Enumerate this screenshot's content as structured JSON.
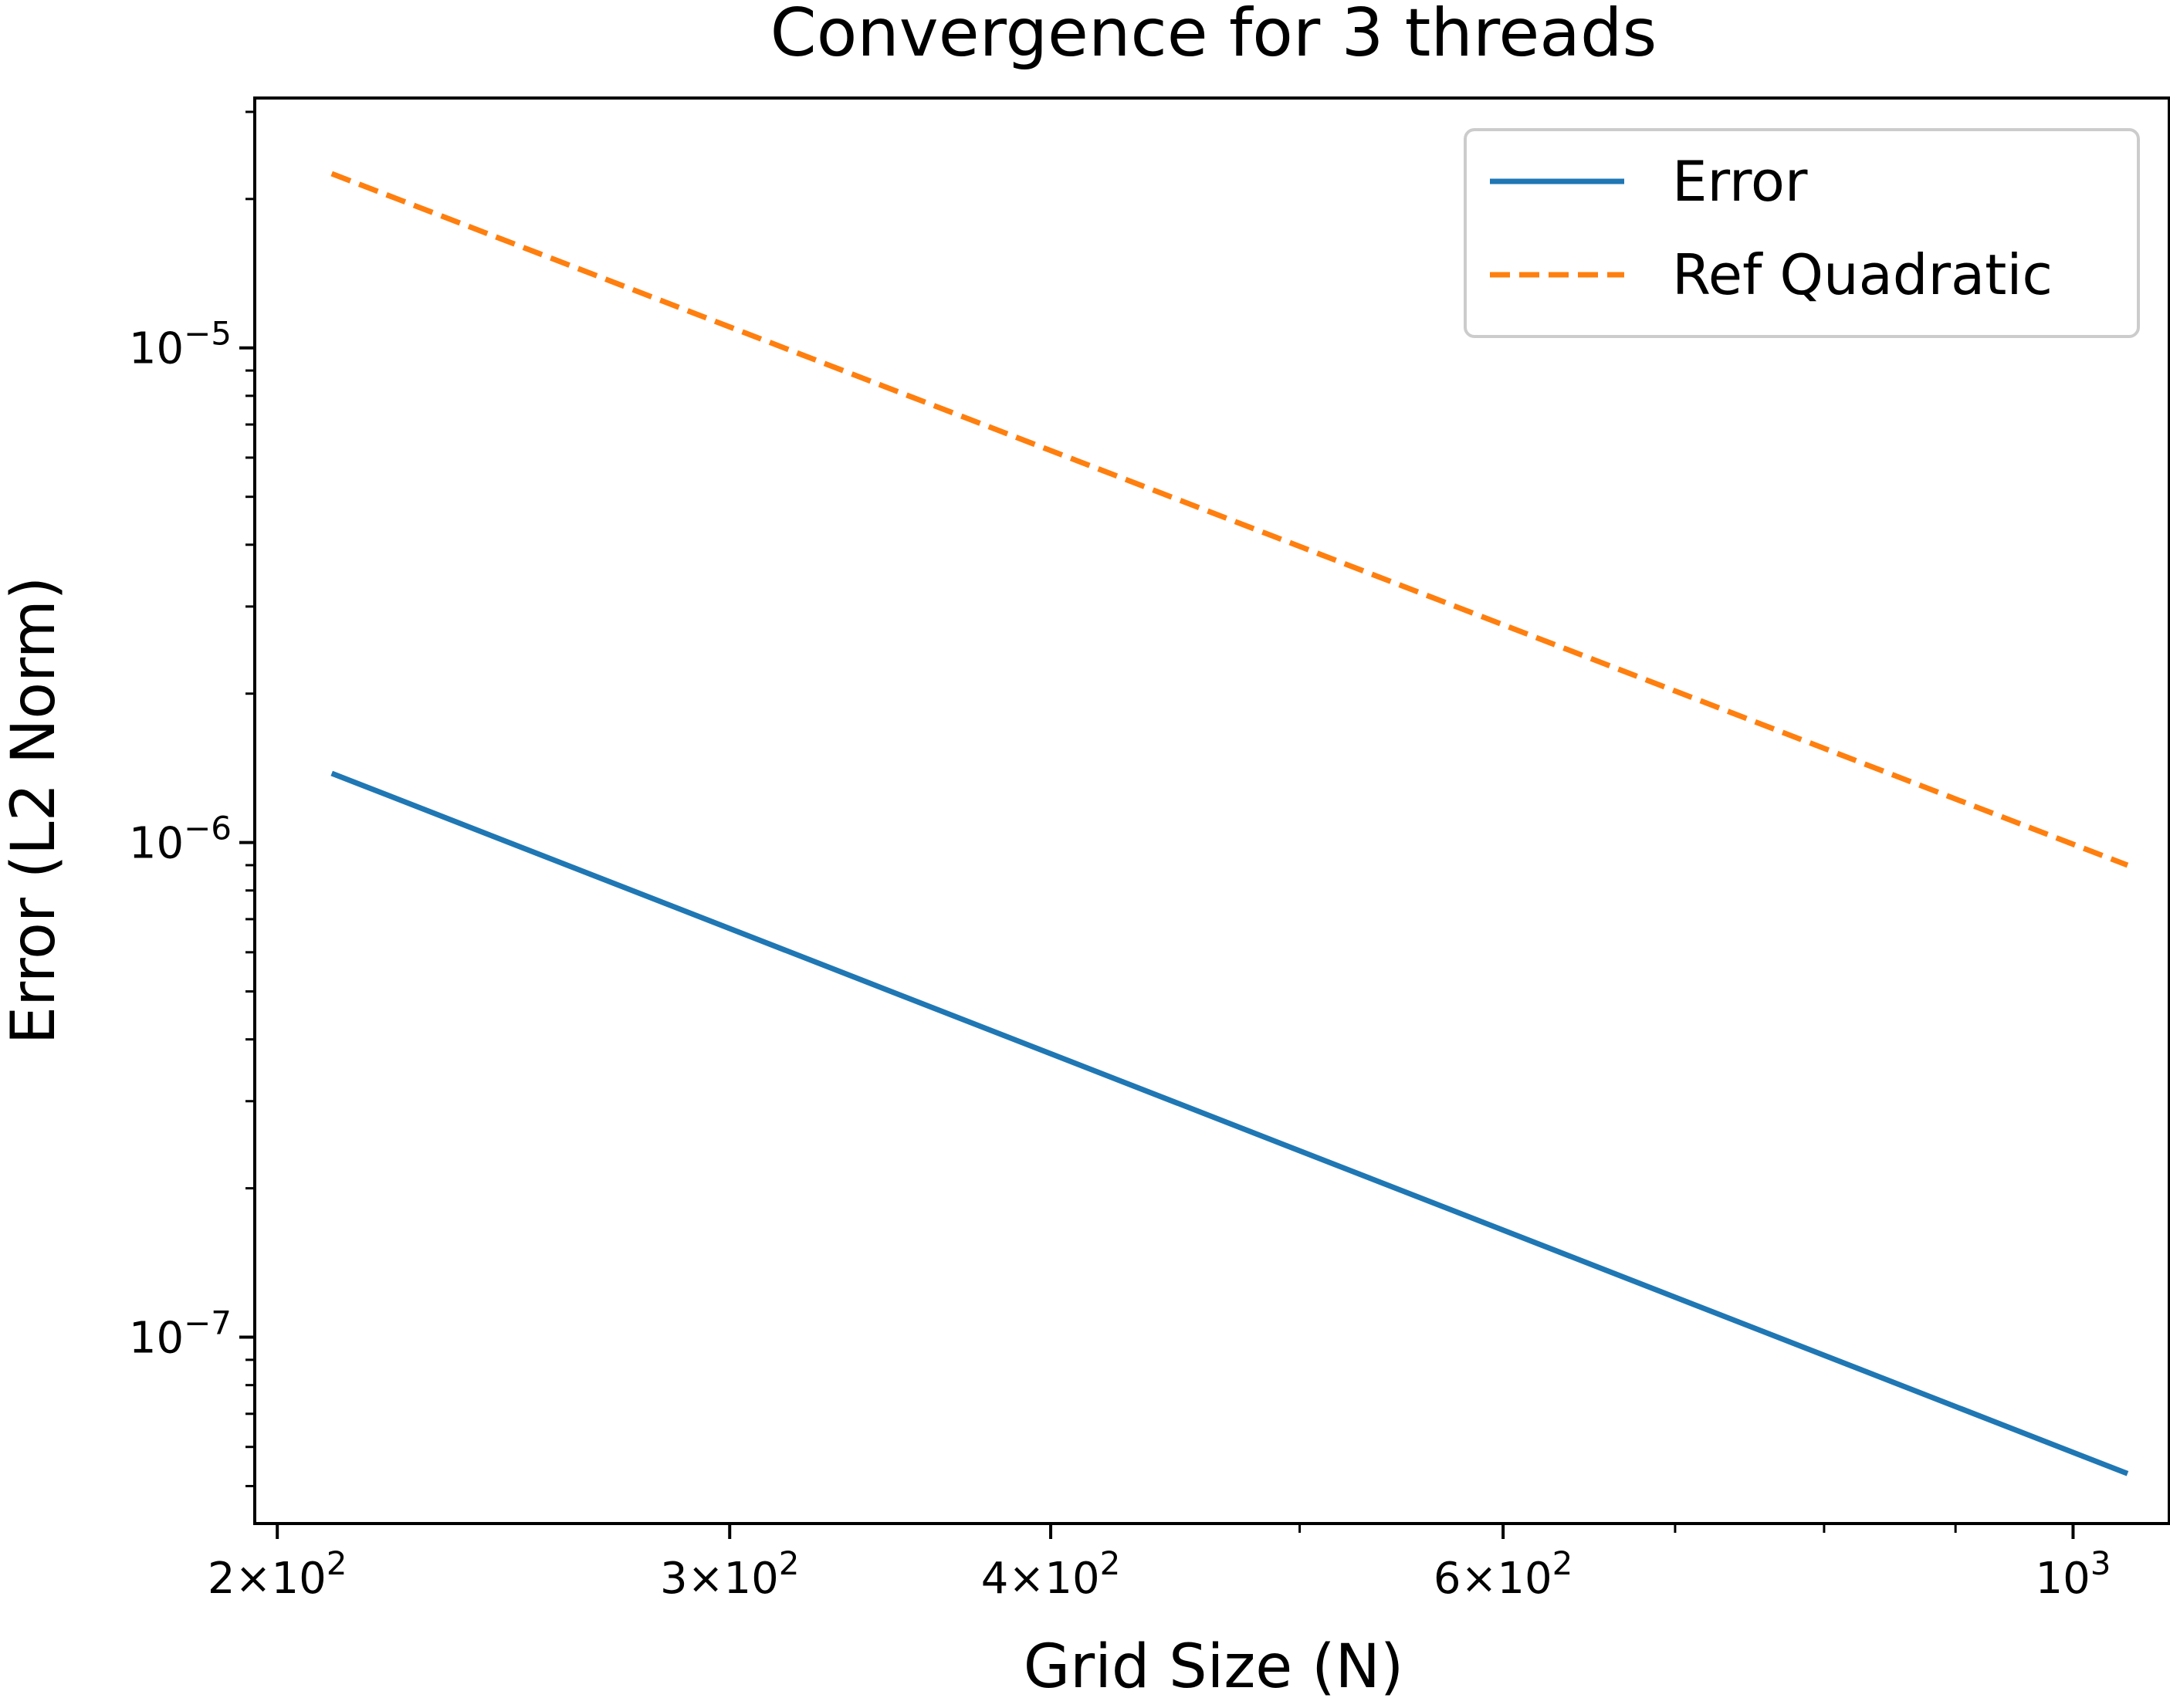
{
  "chart_data": {
    "type": "line",
    "title": "Convergence for 3 threads",
    "xlabel": "Grid Size (N)",
    "ylabel": "Error (L2 Norm)",
    "xscale": "log",
    "yscale": "log",
    "xlim": [
      196,
      1090
    ],
    "ylim": [
      4.2e-08,
      3.2e-05
    ],
    "grid": false,
    "legend_position": "top-right",
    "x_ticks": [
      {
        "value": 200,
        "mantissa": "2",
        "exponent": "2"
      },
      {
        "value": 300,
        "mantissa": "3",
        "exponent": "2"
      },
      {
        "value": 400,
        "mantissa": "4",
        "exponent": "2"
      },
      {
        "value": 600,
        "mantissa": "6",
        "exponent": "2"
      },
      {
        "value": 1000,
        "mantissa": "",
        "exponent": "3"
      }
    ],
    "y_ticks": [
      {
        "value": 1e-05,
        "base": "10",
        "exponent": "−5"
      },
      {
        "value": 1e-06,
        "base": "10",
        "exponent": "−6"
      },
      {
        "value": 1e-07,
        "base": "10",
        "exponent": "−7"
      }
    ],
    "series": [
      {
        "name": "Error",
        "color": "#1f77b4",
        "style": "solid",
        "x": [
          210,
          1050
        ],
        "y": [
          1.38e-06,
          5.3e-08
        ]
      },
      {
        "name": "Ref Quadratic",
        "color": "#ff7f0e",
        "style": "dashed",
        "x": [
          210,
          1050
        ],
        "y": [
          2.25e-05,
          9e-07
        ]
      }
    ]
  }
}
